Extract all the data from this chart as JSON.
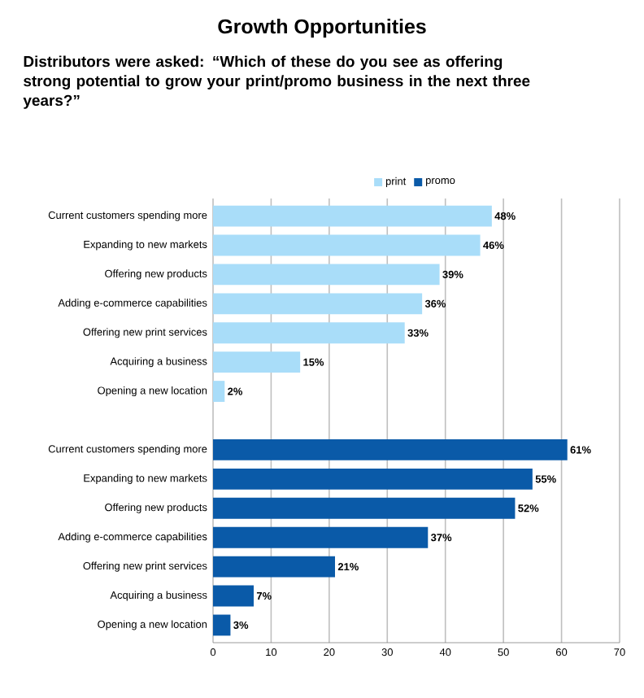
{
  "chart_data": {
    "type": "bar",
    "orientation": "horizontal",
    "title": "Growth Opportunities",
    "subtitle": "Distributors were asked: “Which of these do you see as offering strong potential to grow your print/promo business in the next three years?”",
    "categories": [
      "Current customers spending more",
      "Expanding to new markets",
      "Offering new products",
      "Adding e-commerce capabilities",
      "Offering new print services",
      "Acquiring a business",
      "Opening a new location",
      null,
      "Current customers spending more",
      "Expanding to new markets",
      "Offering new products",
      "Adding e-commerce capabilities",
      "Offering new print services",
      "Acquiring a business",
      "Opening a new location"
    ],
    "series": [
      {
        "name": "print",
        "color": "#a9ddf9",
        "values": [
          48,
          46,
          39,
          36,
          33,
          15,
          2,
          null,
          null,
          null,
          null,
          null,
          null,
          null,
          null
        ],
        "value_labels": [
          "48%",
          "46%",
          "39%",
          "36%",
          "33%",
          "15%",
          "2%",
          null,
          null,
          null,
          null,
          null,
          null,
          null,
          null
        ]
      },
      {
        "name": "promo",
        "color": "#0a5aa8",
        "values": [
          null,
          null,
          null,
          null,
          null,
          null,
          null,
          null,
          61,
          55,
          52,
          37,
          21,
          7,
          3
        ],
        "value_labels": [
          null,
          null,
          null,
          null,
          null,
          null,
          null,
          null,
          "61%",
          "55%",
          "52%",
          "37%",
          "21%",
          "7%",
          "3%"
        ]
      }
    ],
    "xlim": [
      0,
      70
    ],
    "xticks": [
      0,
      10,
      20,
      30,
      40,
      50,
      60,
      70
    ],
    "grid": "x",
    "legend": "top"
  }
}
